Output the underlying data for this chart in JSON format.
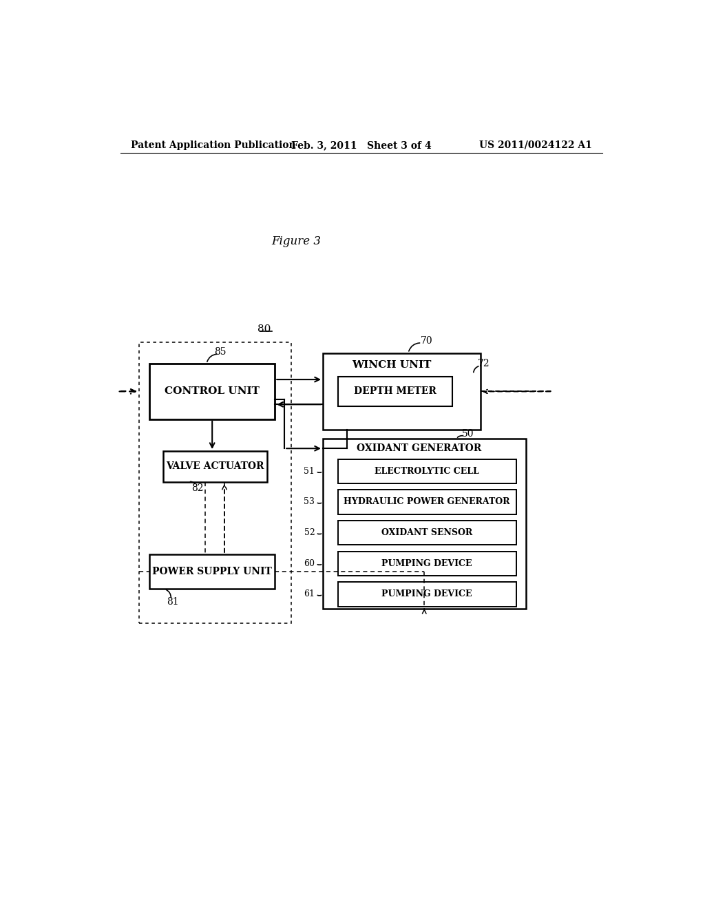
{
  "bg_color": "#ffffff",
  "header_left": "Patent Application Publication",
  "header_center": "Feb. 3, 2011   Sheet 3 of 4",
  "header_right": "US 2011/0024122 A1",
  "figure_label": "Figure 3",
  "label_80": "80",
  "label_70": "70",
  "label_85": "85",
  "label_72": "72",
  "label_50": "50",
  "label_82": "82",
  "label_81": "81",
  "label_51": "51",
  "label_53": "53",
  "label_52": "52",
  "label_60": "60",
  "label_61": "61",
  "box_control_unit": "CONTROL UNIT",
  "box_valve_actuator": "VALVE ACTUATOR",
  "box_power_supply": "POWER SUPPLY UNIT",
  "box_winch_unit": "WINCH UNIT",
  "box_depth_meter": "DEPTH METER",
  "box_oxidant_gen": "OXIDANT GENERATOR",
  "box_electrolytic": "ELECTROLYTIC CELL",
  "box_hydraulic": "HYDRAULIC POWER GENERATOR",
  "box_oxidant_sensor": "OXIDANT SENSOR",
  "box_pumping1": "PUMPING DEVICE",
  "box_pumping2": "PUMPING DEVICE"
}
